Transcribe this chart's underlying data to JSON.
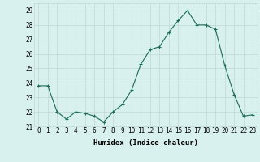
{
  "x": [
    0,
    1,
    2,
    3,
    4,
    5,
    6,
    7,
    8,
    9,
    10,
    11,
    12,
    13,
    14,
    15,
    16,
    17,
    18,
    19,
    20,
    21,
    22,
    23
  ],
  "y": [
    23.8,
    23.8,
    22.0,
    21.5,
    22.0,
    21.9,
    21.7,
    21.3,
    22.0,
    22.5,
    23.5,
    25.3,
    26.3,
    26.5,
    27.5,
    28.3,
    29.0,
    28.0,
    28.0,
    27.7,
    25.2,
    23.2,
    21.7,
    21.8
  ],
  "xlabel": "Humidex (Indice chaleur)",
  "ylim": [
    21.0,
    29.5
  ],
  "yticks": [
    21,
    22,
    23,
    24,
    25,
    26,
    27,
    28,
    29
  ],
  "xticks": [
    0,
    1,
    2,
    3,
    4,
    5,
    6,
    7,
    8,
    9,
    10,
    11,
    12,
    13,
    14,
    15,
    16,
    17,
    18,
    19,
    20,
    21,
    22,
    23
  ],
  "line_color": "#1a6b5a",
  "marker": "+",
  "bg_color": "#d8f0ee",
  "grid_color": "#c0d8d4",
  "axis_fontsize": 6.5,
  "tick_fontsize": 5.5
}
